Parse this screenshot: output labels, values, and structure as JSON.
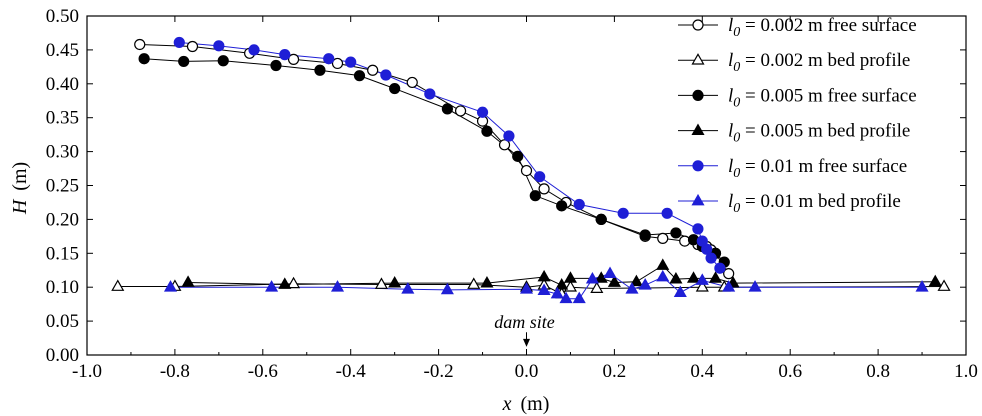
{
  "chart_data": {
    "type": "line",
    "title": "",
    "xlabel": {
      "symbol": "x",
      "unit": "(m)"
    },
    "ylabel": {
      "symbol": "H",
      "unit": "(m)"
    },
    "xlim": [
      -1.0,
      1.0
    ],
    "ylim": [
      0.0,
      0.5
    ],
    "x_ticks": [
      -1.0,
      -0.8,
      -0.6,
      -0.4,
      -0.2,
      0.0,
      0.2,
      0.4,
      0.6,
      0.8,
      1.0
    ],
    "x_tick_labels": [
      "-1.0",
      "-0.8",
      "-0.6",
      "-0.4",
      "-0.2",
      "0.0",
      "0.2",
      "0.4",
      "0.6",
      "0.8",
      "1.0"
    ],
    "y_ticks": [
      0.0,
      0.05,
      0.1,
      0.15,
      0.2,
      0.25,
      0.3,
      0.35,
      0.4,
      0.45,
      0.5
    ],
    "y_tick_labels": [
      "0.00",
      "0.05",
      "0.10",
      "0.15",
      "0.20",
      "0.25",
      "0.30",
      "0.35",
      "0.40",
      "0.45",
      "0.50"
    ],
    "grid": false,
    "legend_position": "top-right",
    "colors": {
      "black": "#000000",
      "blue": "#1f1fd6"
    },
    "annotation": {
      "text": "dam site",
      "x": 0.0,
      "arrow_from_y": 0.038,
      "arrow_to_y": 0.012
    },
    "series": [
      {
        "name": "l0 = 0.002 m free surface",
        "legend_parts": {
          "symbol": "l",
          "sub": "0",
          "rest": " = 0.002 m free surface"
        },
        "color": "#000000",
        "marker": "circle",
        "filled": false,
        "x": [
          -0.88,
          -0.76,
          -0.63,
          -0.53,
          -0.43,
          -0.35,
          -0.26,
          -0.15,
          -0.1,
          -0.05,
          0.0,
          0.04,
          0.09,
          0.17,
          0.27,
          0.31,
          0.36,
          0.39,
          0.41,
          0.42,
          0.43,
          0.46
        ],
        "y": [
          0.458,
          0.455,
          0.445,
          0.436,
          0.43,
          0.42,
          0.402,
          0.36,
          0.345,
          0.31,
          0.272,
          0.245,
          0.225,
          0.2,
          0.175,
          0.172,
          0.168,
          0.163,
          0.16,
          0.155,
          0.15,
          0.12
        ]
      },
      {
        "name": "l0 = 0.002 m bed profile",
        "legend_parts": {
          "symbol": "l",
          "sub": "0",
          "rest": " = 0.002 m bed profile"
        },
        "color": "#000000",
        "marker": "triangle",
        "filled": false,
        "x": [
          -0.93,
          -0.8,
          -0.53,
          -0.33,
          -0.12,
          0.0,
          0.04,
          0.08,
          0.1,
          0.16,
          0.4,
          0.45,
          0.95
        ],
        "y": [
          0.101,
          0.101,
          0.105,
          0.104,
          0.104,
          0.1,
          0.103,
          0.09,
          0.1,
          0.098,
          0.1,
          0.1,
          0.101
        ]
      },
      {
        "name": "l0 = 0.005 m free surface",
        "legend_parts": {
          "symbol": "l",
          "sub": "0",
          "rest": " = 0.005 m free surface"
        },
        "color": "#000000",
        "marker": "circle",
        "filled": true,
        "x": [
          -0.87,
          -0.78,
          -0.69,
          -0.57,
          -0.47,
          -0.38,
          -0.3,
          -0.18,
          -0.09,
          -0.02,
          0.02,
          0.08,
          0.17,
          0.27,
          0.34,
          0.38,
          0.4,
          0.43,
          0.45
        ],
        "y": [
          0.437,
          0.433,
          0.434,
          0.427,
          0.42,
          0.412,
          0.393,
          0.363,
          0.33,
          0.293,
          0.235,
          0.22,
          0.2,
          0.177,
          0.18,
          0.17,
          0.16,
          0.15,
          0.137
        ]
      },
      {
        "name": "l0 = 0.005 m bed profile",
        "legend_parts": {
          "symbol": "l",
          "sub": "0",
          "rest": " = 0.005 m bed profile"
        },
        "color": "#000000",
        "marker": "triangle",
        "filled": true,
        "x": [
          -0.77,
          -0.55,
          -0.3,
          -0.09,
          0.04,
          0.08,
          0.1,
          0.17,
          0.2,
          0.25,
          0.31,
          0.34,
          0.38,
          0.43,
          0.47,
          0.93
        ],
        "y": [
          0.107,
          0.104,
          0.106,
          0.106,
          0.115,
          0.103,
          0.113,
          0.113,
          0.107,
          0.108,
          0.132,
          0.112,
          0.113,
          0.113,
          0.106,
          0.108
        ]
      },
      {
        "name": "l0 = 0.01 m free surface",
        "legend_parts": {
          "symbol": "l",
          "sub": "0",
          "rest": " = 0.01 m free surface"
        },
        "color": "#1f1fd6",
        "marker": "circle",
        "filled": true,
        "x": [
          -0.79,
          -0.7,
          -0.62,
          -0.55,
          -0.45,
          -0.4,
          -0.32,
          -0.22,
          -0.1,
          -0.04,
          0.03,
          0.12,
          0.22,
          0.32,
          0.39,
          0.4,
          0.41,
          0.42,
          0.44
        ],
        "y": [
          0.461,
          0.456,
          0.45,
          0.443,
          0.437,
          0.432,
          0.413,
          0.385,
          0.358,
          0.323,
          0.263,
          0.222,
          0.209,
          0.209,
          0.186,
          0.168,
          0.156,
          0.143,
          0.128
        ]
      },
      {
        "name": "l0 = 0.01 m bed profile",
        "legend_parts": {
          "symbol": "l",
          "sub": "0",
          "rest": " = 0.01 m bed profile"
        },
        "color": "#1f1fd6",
        "marker": "triangle",
        "filled": true,
        "x": [
          -0.81,
          -0.58,
          -0.43,
          -0.27,
          -0.18,
          0.0,
          0.04,
          0.07,
          0.09,
          0.12,
          0.15,
          0.19,
          0.24,
          0.27,
          0.31,
          0.35,
          0.4,
          0.46,
          0.52,
          0.9
        ],
        "y": [
          0.1,
          0.1,
          0.1,
          0.097,
          0.096,
          0.097,
          0.095,
          0.09,
          0.083,
          0.083,
          0.112,
          0.12,
          0.097,
          0.103,
          0.115,
          0.092,
          0.11,
          0.1,
          0.1,
          0.1
        ]
      }
    ]
  }
}
